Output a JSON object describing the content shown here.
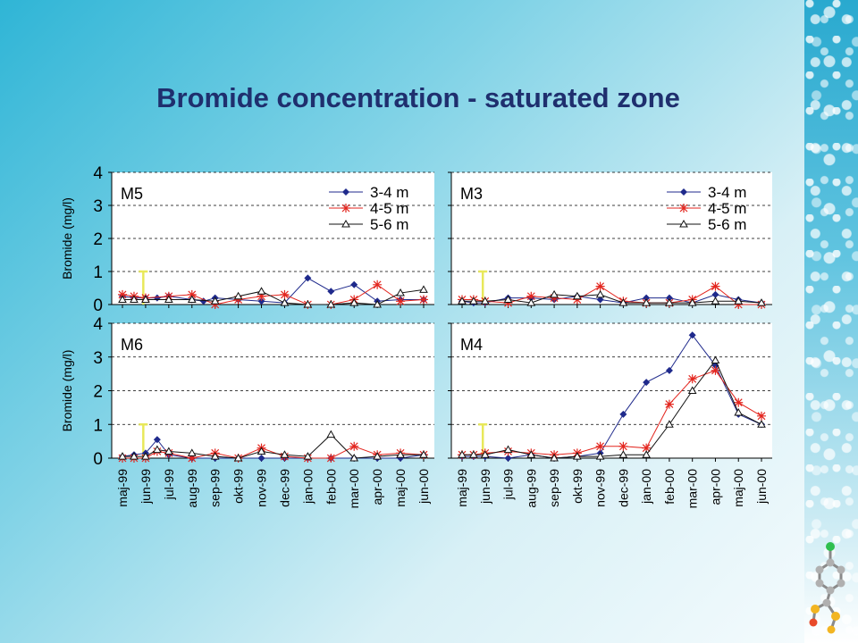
{
  "title": "Bromide concentration - saturated zone",
  "colors": {
    "s34": "#1f2a8c",
    "s45": "#e3261f",
    "s56": "#111111",
    "marker": "#e8e85a"
  },
  "chart_data": [
    {
      "type": "line",
      "panel": "M5",
      "ylabel": "Bromide (mg/l)",
      "ylim": [
        0,
        4
      ],
      "yticks": [
        "0",
        "1",
        "2",
        "3",
        "4"
      ],
      "grid": "dashed horizontal",
      "legend": "top-right",
      "x": [
        0,
        1,
        2,
        3,
        4,
        5,
        6,
        7,
        8,
        9,
        10,
        11,
        12,
        13
      ],
      "marker_x": 0.9,
      "series": [
        {
          "name": "3-4 m",
          "marker": "diamond",
          "x": [
            0,
            0.5,
            1,
            1.5,
            2,
            3,
            3.5,
            4,
            5,
            6,
            7,
            8,
            9,
            10,
            11,
            12,
            13
          ],
          "values": [
            0.25,
            0.2,
            0.2,
            0.2,
            0.25,
            0.15,
            0.1,
            0.2,
            0.15,
            0.1,
            0.05,
            0.8,
            0.4,
            0.6,
            0.1,
            0.15,
            0.15
          ]
        },
        {
          "name": "4-5 m",
          "marker": "star",
          "x": [
            0,
            0.5,
            1,
            2,
            3,
            4,
            5,
            6,
            7,
            8,
            9,
            10,
            11,
            12,
            13
          ],
          "values": [
            0.3,
            0.25,
            0.2,
            0.25,
            0.3,
            0.0,
            0.15,
            0.25,
            0.3,
            0.0,
            0.0,
            0.15,
            0.6,
            0.1,
            0.15
          ]
        },
        {
          "name": "5-6 m",
          "marker": "triangle",
          "x": [
            0,
            0.5,
            1,
            2,
            3,
            4,
            5,
            6,
            7,
            8,
            9,
            10,
            11,
            12,
            13
          ],
          "values": [
            0.15,
            0.15,
            0.15,
            0.15,
            0.15,
            0.1,
            0.25,
            0.4,
            0.05,
            0.0,
            0.0,
            0.05,
            0.0,
            0.35,
            0.45
          ]
        }
      ]
    },
    {
      "type": "line",
      "panel": "M3",
      "ylim": [
        0,
        4
      ],
      "grid": "dashed horizontal",
      "legend": "top-right",
      "x": [
        0,
        1,
        2,
        3,
        4,
        5,
        6,
        7,
        8,
        9,
        10,
        11,
        12,
        13
      ],
      "marker_x": 0.9,
      "series": [
        {
          "name": "3-4 m",
          "marker": "diamond",
          "x": [
            0,
            0.5,
            1,
            2,
            3,
            4,
            5,
            6,
            7,
            8,
            9,
            10,
            11,
            12,
            13
          ],
          "values": [
            0.1,
            0.05,
            0.05,
            0.2,
            0.2,
            0.15,
            0.25,
            0.15,
            0.05,
            0.2,
            0.2,
            0.05,
            0.3,
            0.15,
            0.05
          ]
        },
        {
          "name": "4-5 m",
          "marker": "star",
          "x": [
            0,
            0.5,
            1,
            2,
            3,
            4,
            5,
            6,
            7,
            8,
            9,
            10,
            11,
            12,
            13
          ],
          "values": [
            0.15,
            0.15,
            0.1,
            0.05,
            0.25,
            0.2,
            0.15,
            0.55,
            0.1,
            0.05,
            0.05,
            0.15,
            0.55,
            0.0,
            0.0
          ]
        },
        {
          "name": "5-6 m",
          "marker": "triangle",
          "x": [
            0,
            0.5,
            1,
            2,
            3,
            4,
            5,
            6,
            7,
            8,
            9,
            10,
            11,
            12,
            13
          ],
          "values": [
            0.1,
            0.1,
            0.1,
            0.15,
            0.05,
            0.3,
            0.25,
            0.3,
            0.05,
            0.05,
            0.05,
            0.05,
            0.1,
            0.1,
            0.05
          ]
        }
      ]
    },
    {
      "type": "line",
      "panel": "M6",
      "ylabel": "Bromide (mg/l)",
      "ylim": [
        0,
        4
      ],
      "yticks": [
        "0",
        "1",
        "2",
        "3",
        "4"
      ],
      "grid": "dashed horizontal",
      "categories": [
        "maj-99",
        "jun-99",
        "jul-99",
        "aug-99",
        "sep-99",
        "okt-99",
        "nov-99",
        "dec-99",
        "jan-00",
        "feb-00",
        "mar-00",
        "apr-00",
        "maj-00",
        "jun-00"
      ],
      "x": [
        0,
        1,
        2,
        3,
        4,
        5,
        6,
        7,
        8,
        9,
        10,
        11,
        12,
        13
      ],
      "marker_x": 0.9,
      "series": [
        {
          "name": "3-4 m",
          "marker": "diamond",
          "x": [
            0,
            0.5,
            1,
            1.5,
            2,
            3,
            4,
            5,
            6,
            7,
            8,
            9,
            10,
            11,
            12,
            13
          ],
          "values": [
            0.05,
            0.1,
            0.15,
            0.55,
            0.1,
            0.0,
            0.0,
            0.0,
            0.0,
            0.0,
            0.0,
            0.0,
            0.0,
            0.0,
            0.0,
            0.1
          ]
        },
        {
          "name": "4-5 m",
          "marker": "star",
          "x": [
            0,
            0.5,
            1,
            1.5,
            2,
            3,
            4,
            5,
            6,
            7,
            8,
            9,
            10,
            11,
            12,
            13
          ],
          "values": [
            0.0,
            0.0,
            0.0,
            0.2,
            0.15,
            0.0,
            0.15,
            0.0,
            0.3,
            0.05,
            0.0,
            0.0,
            0.35,
            0.1,
            0.15,
            0.1
          ]
        },
        {
          "name": "5-6 m",
          "marker": "triangle",
          "x": [
            0,
            0.5,
            1,
            1.5,
            2,
            3,
            4,
            5,
            6,
            7,
            8,
            9,
            10,
            11,
            12,
            13
          ],
          "values": [
            0.05,
            0.05,
            0.05,
            0.25,
            0.2,
            0.15,
            0.05,
            0.0,
            0.2,
            0.1,
            0.05,
            0.7,
            0.0,
            0.05,
            0.1,
            0.1
          ]
        }
      ]
    },
    {
      "type": "line",
      "panel": "M4",
      "ylim": [
        0,
        4
      ],
      "grid": "dashed horizontal",
      "categories": [
        "maj-99",
        "jun-99",
        "jul-99",
        "aug-99",
        "sep-99",
        "okt-99",
        "nov-99",
        "dec-99",
        "jan-00",
        "feb-00",
        "mar-00",
        "apr-00",
        "maj-00",
        "jun-00"
      ],
      "x": [
        0,
        1,
        2,
        3,
        4,
        5,
        6,
        7,
        8,
        9,
        10,
        11,
        12,
        13
      ],
      "marker_x": 0.9,
      "series": [
        {
          "name": "3-4 m",
          "marker": "diamond",
          "x": [
            0,
            0.5,
            1,
            2,
            3,
            4,
            5,
            6,
            7,
            8,
            9,
            10,
            11,
            12,
            13
          ],
          "values": [
            0.05,
            0.05,
            0.05,
            0.0,
            0.1,
            0.0,
            0.05,
            0.15,
            1.3,
            2.25,
            2.6,
            3.65,
            2.75,
            1.3,
            1.0
          ]
        },
        {
          "name": "4-5 m",
          "marker": "star",
          "x": [
            0,
            0.5,
            1,
            2,
            3,
            4,
            5,
            6,
            7,
            8,
            9,
            10,
            11,
            12,
            13
          ],
          "values": [
            0.1,
            0.1,
            0.15,
            0.2,
            0.15,
            0.1,
            0.15,
            0.35,
            0.35,
            0.3,
            1.6,
            2.35,
            2.6,
            1.65,
            1.25
          ]
        },
        {
          "name": "5-6 m",
          "marker": "triangle",
          "x": [
            0,
            0.5,
            1,
            2,
            3,
            4,
            5,
            6,
            7,
            8,
            9,
            10,
            11,
            12,
            13
          ],
          "values": [
            0.1,
            0.1,
            0.1,
            0.25,
            0.1,
            0.0,
            0.05,
            0.05,
            0.1,
            0.1,
            1.0,
            2.0,
            2.9,
            1.35,
            1.0
          ]
        }
      ]
    }
  ]
}
